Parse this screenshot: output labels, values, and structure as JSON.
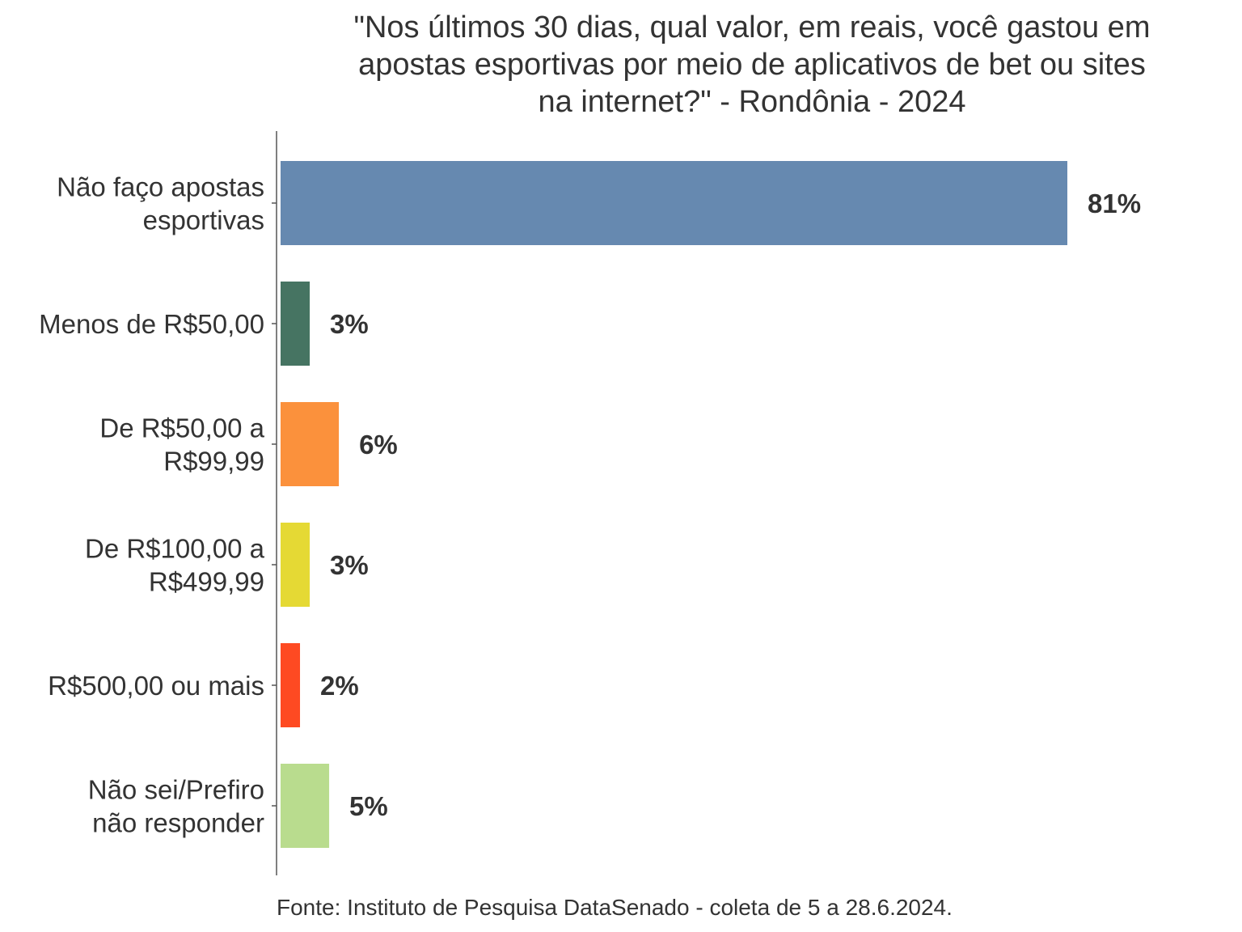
{
  "chart_data": {
    "type": "bar",
    "orientation": "horizontal",
    "title": "\"Nos últimos 30 dias, qual valor, em reais, você gastou em apostas esportivas por meio de aplicativos de bet ou sites na internet?\" - Rondônia - 2024",
    "title_lines": [
      "\"Nos últimos 30 dias, qual valor, em reais, você gastou em",
      "apostas esportivas por meio de aplicativos de bet ou sites",
      "na internet?\" - Rondônia - 2024"
    ],
    "categories": [
      [
        "Não faço apostas",
        "esportivas"
      ],
      [
        "Menos de R$50,00"
      ],
      [
        "De R$50,00 a",
        "R$99,99"
      ],
      [
        "De R$100,00 a",
        "R$499,99"
      ],
      [
        "R$500,00 ou mais"
      ],
      [
        "Não sei/Prefiro",
        "não responder"
      ]
    ],
    "values": [
      81,
      3,
      6,
      3,
      2,
      5
    ],
    "value_labels": [
      "81%",
      "3%",
      "6%",
      "3%",
      "2%",
      "5%"
    ],
    "colors": [
      "#6689b0",
      "#467462",
      "#fb913c",
      "#e5d934",
      "#fe4a22",
      "#b9dc8e"
    ],
    "xlabel": "",
    "ylabel": "",
    "xlim": [
      0,
      100
    ],
    "grid": false,
    "legend": "none",
    "source": "Fonte: Instituto de Pesquisa DataSenado - coleta de 5 a 28.6.2024."
  }
}
